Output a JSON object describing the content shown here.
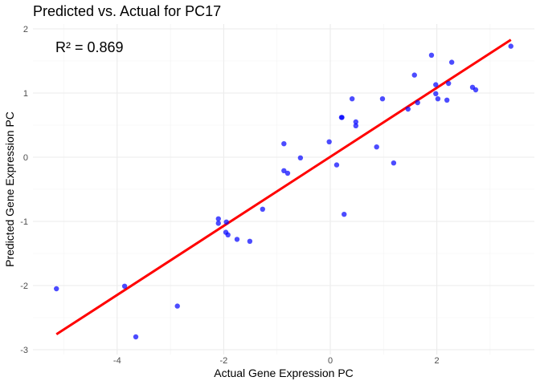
{
  "chart_data": {
    "type": "scatter",
    "title": "Predicted vs. Actual for PC17",
    "xlabel": "Actual Gene Expression PC",
    "ylabel": "Predicted Gene Expression PC",
    "annotation": "R² = 0.869",
    "xlim": [
      -5.3,
      3.8
    ],
    "ylim": [
      -3.0,
      2.0
    ],
    "x_ticks": [
      -4,
      -2,
      0,
      2
    ],
    "x_tick_labels": [
      "-4",
      "-2",
      "0",
      "2"
    ],
    "y_ticks": [
      -3,
      -2,
      -1,
      0,
      1,
      2
    ],
    "y_tick_labels": [
      "-3",
      "-2",
      "-1",
      "0",
      "1",
      "2"
    ],
    "x_minor": [
      -5,
      -3,
      -1,
      1,
      3
    ],
    "y_minor": [
      -2.5,
      -1.5,
      -0.5,
      0.5,
      1.5
    ],
    "grid": true,
    "point_color": "#0000FF",
    "line_color": "#FF0000",
    "points": [
      {
        "x": -5.14,
        "y": -2.05
      },
      {
        "x": -3.86,
        "y": -2.01
      },
      {
        "x": -3.65,
        "y": -2.8
      },
      {
        "x": -2.87,
        "y": -2.32
      },
      {
        "x": -2.1,
        "y": -0.96
      },
      {
        "x": -2.1,
        "y": -1.03
      },
      {
        "x": -1.95,
        "y": -1.01
      },
      {
        "x": -1.96,
        "y": -1.17
      },
      {
        "x": -1.92,
        "y": -1.21
      },
      {
        "x": -1.75,
        "y": -1.28
      },
      {
        "x": -1.51,
        "y": -1.31
      },
      {
        "x": -1.27,
        "y": -0.81
      },
      {
        "x": -0.87,
        "y": 0.21
      },
      {
        "x": -0.87,
        "y": -0.21
      },
      {
        "x": -0.8,
        "y": -0.25
      },
      {
        "x": -0.56,
        "y": -0.01
      },
      {
        "x": -0.02,
        "y": 0.24
      },
      {
        "x": 0.12,
        "y": -0.12
      },
      {
        "x": 0.26,
        "y": -0.89
      },
      {
        "x": 0.21,
        "y": 0.62
      },
      {
        "x": 0.22,
        "y": 0.62
      },
      {
        "x": 0.41,
        "y": 0.91
      },
      {
        "x": 0.48,
        "y": 0.55
      },
      {
        "x": 0.48,
        "y": 0.49
      },
      {
        "x": 0.87,
        "y": 0.16
      },
      {
        "x": 0.98,
        "y": 0.91
      },
      {
        "x": 1.19,
        "y": -0.09
      },
      {
        "x": 1.46,
        "y": 0.75
      },
      {
        "x": 1.58,
        "y": 1.28
      },
      {
        "x": 1.64,
        "y": 0.85
      },
      {
        "x": 1.9,
        "y": 1.59
      },
      {
        "x": 1.98,
        "y": 1.13
      },
      {
        "x": 1.98,
        "y": 0.99
      },
      {
        "x": 2.02,
        "y": 0.91
      },
      {
        "x": 2.19,
        "y": 0.89
      },
      {
        "x": 2.22,
        "y": 1.15
      },
      {
        "x": 2.28,
        "y": 1.48
      },
      {
        "x": 2.67,
        "y": 1.09
      },
      {
        "x": 2.73,
        "y": 1.05
      },
      {
        "x": 3.39,
        "y": 1.73
      }
    ],
    "fit_line": {
      "x": [
        -5.14,
        3.39
      ],
      "y": [
        -2.76,
        1.83
      ]
    }
  }
}
